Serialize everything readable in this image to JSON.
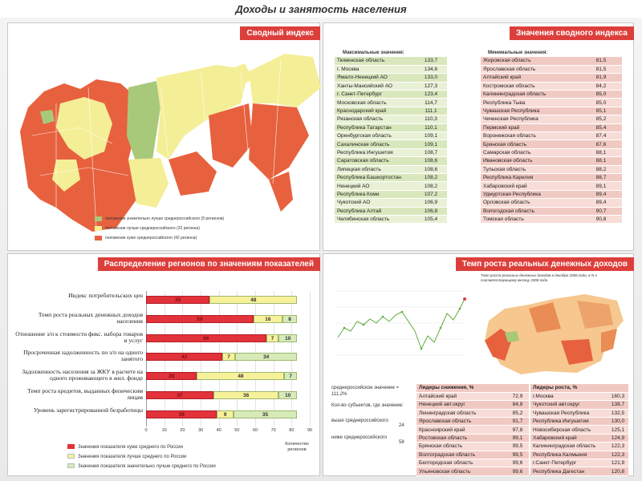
{
  "page": {
    "title": "Доходы и занятость населения"
  },
  "panel_map": {
    "badge": "Сводный индекс",
    "legend": [
      {
        "label": "положение значительно лучше среднероссийского (9 регионов)",
        "color": "#a9c97a"
      },
      {
        "label": "положение лучше среднероссийского (32 региона)",
        "color": "#f4ee97"
      },
      {
        "label": "положение хуже среднероссийского (42 региона)",
        "color": "#e7613e"
      }
    ]
  },
  "panel_index": {
    "badge": "Значения сводного индекса",
    "max_header": "Максимальные значения:",
    "min_header": "Минимальные значения:",
    "max_rows": [
      {
        "name": "Тюменская область",
        "value": "133,7"
      },
      {
        "name": "г. Москва",
        "value": "134,6"
      },
      {
        "name": "Ямало-Ненецкий АО",
        "value": "133,0"
      },
      {
        "name": "Ханты-Мансийский АО",
        "value": "127,3"
      },
      {
        "name": "г. Санкт-Петербург",
        "value": "123,4"
      },
      {
        "name": "Московская область",
        "value": "114,7"
      },
      {
        "name": "Краснодарский край",
        "value": "111,1"
      },
      {
        "name": "Рязанская область",
        "value": "110,3"
      },
      {
        "name": "Республика Татарстан",
        "value": "110,1"
      },
      {
        "name": "Оренбургская область",
        "value": "109,1"
      },
      {
        "name": "Сахалинская область",
        "value": "109,1"
      },
      {
        "name": "Республика Ингушетия",
        "value": "108,7"
      },
      {
        "name": "Саратовская область",
        "value": "108,6"
      },
      {
        "name": "Липецкая область",
        "value": "108,6"
      },
      {
        "name": "Республика Башкортостан",
        "value": "108,2"
      },
      {
        "name": "Ненецкий АО",
        "value": "108,2"
      },
      {
        "name": "Республика Коми",
        "value": "107,2"
      },
      {
        "name": "Чукотский АО",
        "value": "106,9"
      },
      {
        "name": "Республика Алтай",
        "value": "106,8"
      },
      {
        "name": "Челябинская область",
        "value": "105,4"
      }
    ],
    "min_rows": [
      {
        "name": "Жировская область",
        "value": "81,5"
      },
      {
        "name": "Ярославская область",
        "value": "81,5"
      },
      {
        "name": "Алтайский край",
        "value": "81,9"
      },
      {
        "name": "Костромская область",
        "value": "84,2"
      },
      {
        "name": "Калининградская область",
        "value": "85,0"
      },
      {
        "name": "Республика Тыва",
        "value": "85,0"
      },
      {
        "name": "Чувашская Республика",
        "value": "85,1"
      },
      {
        "name": "Чеченская Республика",
        "value": "85,2"
      },
      {
        "name": "Пермский край",
        "value": "85,4"
      },
      {
        "name": "Воронежская область",
        "value": "87,4"
      },
      {
        "name": "Брянская область",
        "value": "87,6"
      },
      {
        "name": "Самарская область",
        "value": "88,1"
      },
      {
        "name": "Ивановская область",
        "value": "88,1"
      },
      {
        "name": "Тульская область",
        "value": "88,2"
      },
      {
        "name": "Республика Карелия",
        "value": "88,7"
      },
      {
        "name": "Хабаровский край",
        "value": "89,1"
      },
      {
        "name": "Удмуртская Республика",
        "value": "89,4"
      },
      {
        "name": "Орловская область",
        "value": "89,4"
      },
      {
        "name": "Вологодская область",
        "value": "90,7"
      },
      {
        "name": "Томская область",
        "value": "90,8"
      }
    ]
  },
  "panel_dist": {
    "badge": "Распределение регионов по значениям показателей",
    "legend": [
      {
        "label": "Значения показателя хуже среднего по России",
        "color": "#e2323a"
      },
      {
        "label": "Значения показателя лучше среднего по России",
        "color": "#f7f19a"
      },
      {
        "label": "Значения показателя значительно лучше среднего по России",
        "color": "#d7eab9"
      }
    ],
    "axis_note": "Количество регионов"
  },
  "chart_data": {
    "type": "bar",
    "stacked": true,
    "orientation": "horizontal",
    "categories": [
      "Индекс потребительских цен",
      "Темп роста реальных денежных доходов населения",
      "Отношение з/п к стоимости фикс. набора товаров и услуг",
      "Просроченная задолженность по з/п на одного занятого",
      "Задолженность населения за ЖКУ в расчете на одного проживающего в жил. фонде",
      "Темп роста кредитов, выданных физическим лицам",
      "Уровень зарегистрированной безработицы"
    ],
    "series": [
      {
        "name": "Значения показателя хуже среднего по России",
        "values": [
          35,
          59,
          66,
          42,
          28,
          37,
          39
        ]
      },
      {
        "name": "Значения показателя лучше среднего по России",
        "values": [
          48,
          16,
          7,
          7,
          48,
          36,
          9
        ]
      },
      {
        "name": "Значения показателя значительно лучше среднего по России",
        "values": [
          0,
          8,
          10,
          34,
          7,
          10,
          35
        ]
      }
    ],
    "xlim": [
      0,
      90
    ],
    "xticks": [
      "0",
      "10",
      "20",
      "30",
      "40",
      "50",
      "60",
      "70",
      "80",
      "90"
    ],
    "colors": [
      "#e2323a",
      "#f7f19a",
      "#d7eab9"
    ]
  },
  "panel_growth": {
    "badge": "Темп роста реальных денежных доходов",
    "chart_title": "Темп роста реальных денежных доходов в декабре 2008 года, в % к соответствующему месяцу 2008 года",
    "avg_label": "среднероссийское значение = 111,2%",
    "count_header": "Кол-во субъектов, где значение:",
    "above_label": "выше среднероссийского",
    "above_count": "24",
    "below_label": "ниже среднероссийского",
    "below_count": "58",
    "decline_header": "Лидеры снижения, %",
    "decline": [
      {
        "name": "Алтайский край",
        "value": "72,9"
      },
      {
        "name": "Ненецкий авт.округ",
        "value": "84,8"
      },
      {
        "name": "Ленинградская область",
        "value": "85,2"
      },
      {
        "name": "Ярославская область",
        "value": "91,7"
      },
      {
        "name": "Красноярский край",
        "value": "97,8"
      },
      {
        "name": "Ростовская область",
        "value": "99,1"
      },
      {
        "name": "Брянская область",
        "value": "99,5"
      },
      {
        "name": "Волгоградская область",
        "value": "99,5"
      },
      {
        "name": "Белгородская область",
        "value": "99,6"
      },
      {
        "name": "Ульяновская область",
        "value": "99,6"
      }
    ],
    "growth_header": "Лидеры роста, %",
    "growth": [
      {
        "name": "г.Москва",
        "value": "160,3"
      },
      {
        "name": "Чукотский авт.округ",
        "value": "138,7"
      },
      {
        "name": "Чувашская Республика",
        "value": "132,5"
      },
      {
        "name": "Республика Ингушетия",
        "value": "130,0"
      },
      {
        "name": "Новосибирская область",
        "value": "125,1"
      },
      {
        "name": "Хабаровский край",
        "value": "124,9"
      },
      {
        "name": "Калининградская область",
        "value": "122,3"
      },
      {
        "name": "Республика Калмыкия",
        "value": "122,3"
      },
      {
        "name": "г.Санкт-Петербург",
        "value": "121,9"
      },
      {
        "name": "Республика Дагестан",
        "value": "120,8"
      }
    ]
  }
}
